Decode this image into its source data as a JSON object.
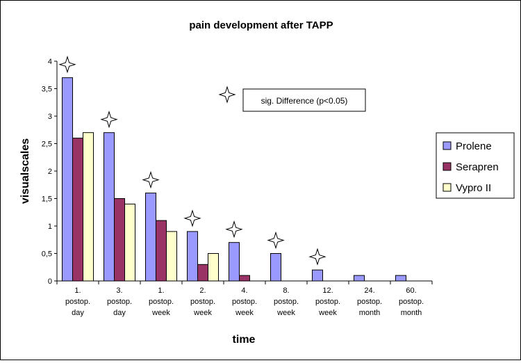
{
  "chart_data": {
    "type": "bar",
    "title": "pain development after TAPP",
    "xlabel": "time",
    "ylabel": "visualscales",
    "ylim": [
      0,
      4
    ],
    "yticks": [
      "0",
      "0,5",
      "1",
      "1,5",
      "2",
      "2,5",
      "3",
      "3,5",
      "4"
    ],
    "categories": [
      [
        "1.",
        "postop.",
        "day"
      ],
      [
        "3.",
        "postop.",
        "day"
      ],
      [
        "1.",
        "postop.",
        "week"
      ],
      [
        "2.",
        "postop.",
        "week"
      ],
      [
        "4.",
        "postop.",
        "week"
      ],
      [
        "8.",
        "postop.",
        "week"
      ],
      [
        "12.",
        "postop.",
        "week"
      ],
      [
        "24.",
        "postop.",
        "month"
      ],
      [
        "60.",
        "postop.",
        "month"
      ]
    ],
    "series": [
      {
        "name": "Prolene",
        "color": "#9999ff",
        "values": [
          3.7,
          2.7,
          1.6,
          0.9,
          0.7,
          0.5,
          0.2,
          0.1,
          0.1
        ]
      },
      {
        "name": "Serapren",
        "color": "#993366",
        "values": [
          2.6,
          1.5,
          1.1,
          0.3,
          0.1,
          0,
          0,
          0,
          0
        ]
      },
      {
        "name": "Vypro II",
        "color": "#ffffcc",
        "values": [
          2.7,
          1.4,
          0.9,
          0.5,
          0,
          0,
          0,
          0,
          0
        ]
      }
    ],
    "significance_marker_categories": [
      0,
      1,
      2,
      3,
      4,
      5,
      6
    ],
    "annotation": "sig. Difference (p<0.05)",
    "legend_position": "right",
    "grid": false
  }
}
